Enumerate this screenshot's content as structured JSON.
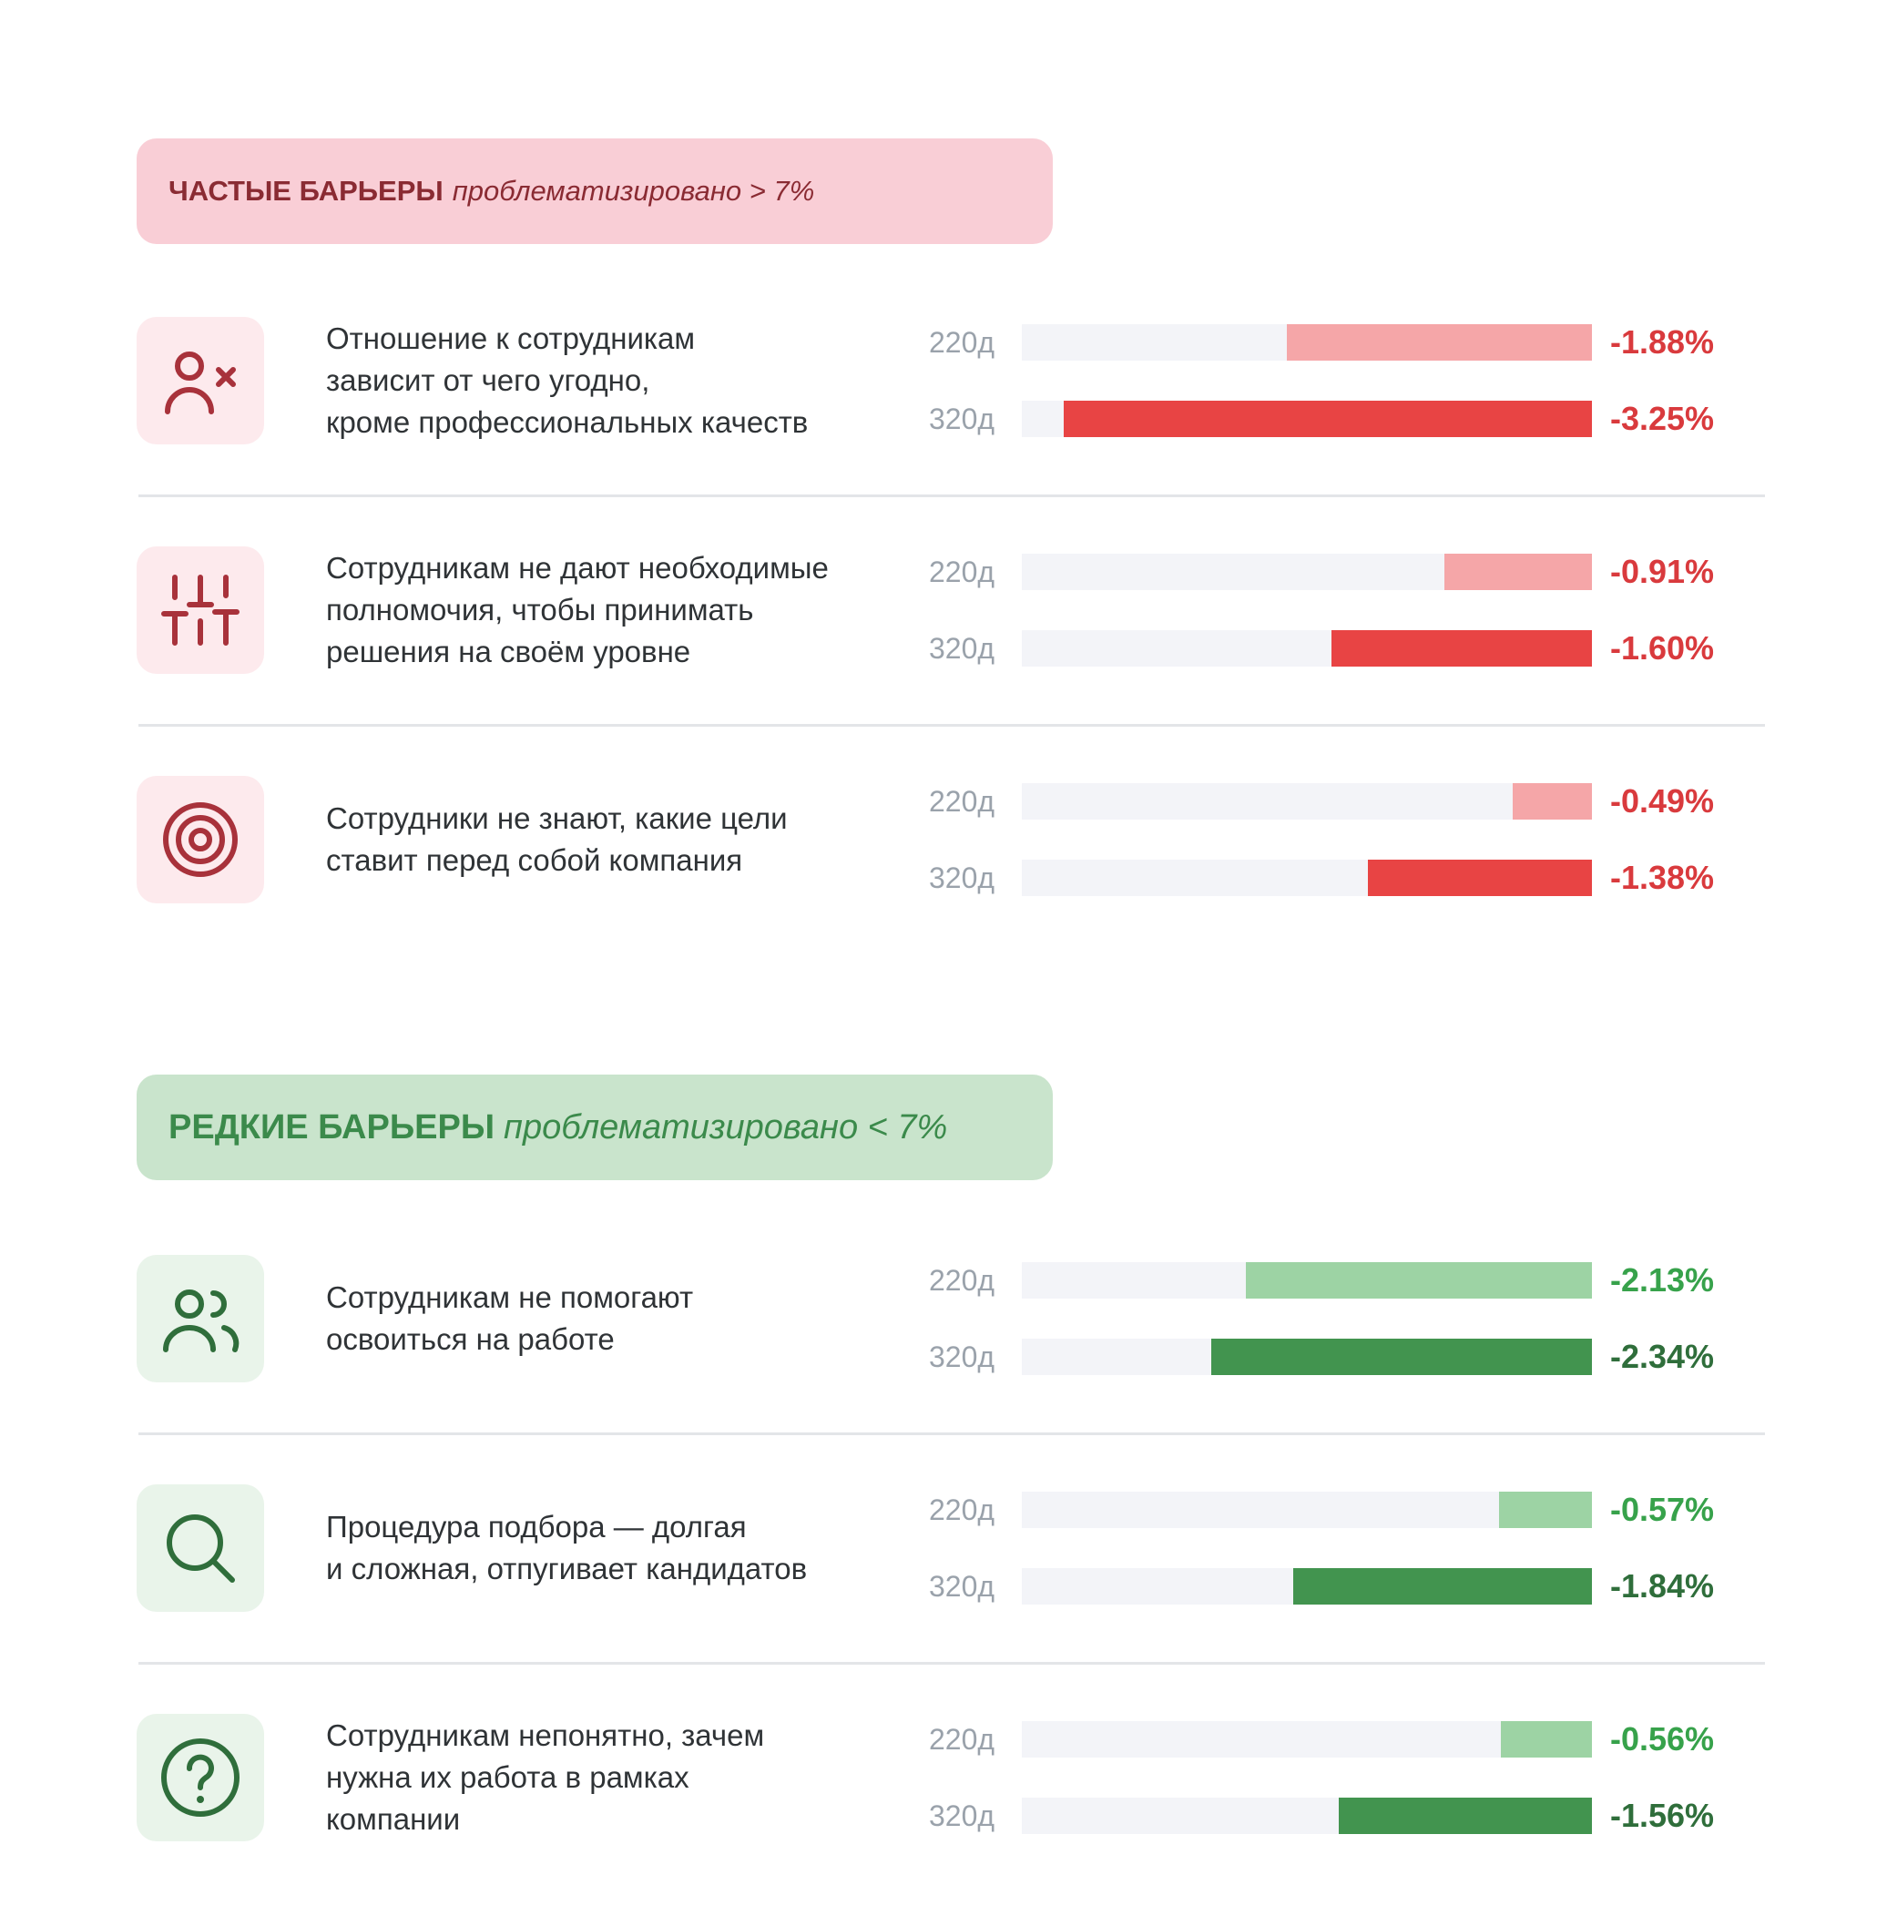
{
  "colors": {
    "red_light": "#f5a6a8",
    "red_dark": "#e84444",
    "red_text": "#d93a3d",
    "green_light": "#9dd3a4",
    "green_dark": "#42944f",
    "green_text_light": "#37a24b",
    "green_text_dark": "#2f6e3b"
  },
  "sections": {
    "frequent": {
      "title": "ЧАСТЫЕ БАРЬЕРЫ",
      "subtitle": "проблематизировано > 7%"
    },
    "rare": {
      "title": "РЕДКИЕ БАРЬЕРЫ",
      "subtitle": "проблематизировано < 7%"
    }
  },
  "chart_data": {
    "type": "bar",
    "orientation": "horizontal",
    "value_unit": "%",
    "x_max_abs": 3.25,
    "series_names": [
      "220д",
      "320д"
    ],
    "categories": [
      {
        "section": "frequent",
        "icon": "user-x-icon",
        "lines": [
          "Отношение к сотрудникам",
          "зависит от чего угодно,",
          "кроме профессиональных качеств"
        ],
        "values": [
          -1.88,
          -3.25
        ],
        "labels": [
          "-1.88%",
          "-3.25%"
        ]
      },
      {
        "section": "frequent",
        "icon": "sliders-icon",
        "lines": [
          "Сотрудникам не дают необходимые",
          "полномочия, чтобы принимать",
          "решения на своём уровне"
        ],
        "values": [
          -0.91,
          -1.6
        ],
        "labels": [
          "-0.91%",
          "-1.60%"
        ]
      },
      {
        "section": "frequent",
        "icon": "target-icon",
        "lines": [
          "Сотрудники не знают, какие цели",
          "ставит перед собой компания"
        ],
        "values": [
          -0.49,
          -1.38
        ],
        "labels": [
          "-0.49%",
          "-1.38%"
        ]
      },
      {
        "section": "rare",
        "icon": "users-icon",
        "lines": [
          "Сотрудникам не помогают",
          "освоиться на работе"
        ],
        "values": [
          -2.13,
          -2.34
        ],
        "labels": [
          "-2.13%",
          "-2.34%"
        ]
      },
      {
        "section": "rare",
        "icon": "search-icon",
        "lines": [
          "Процедура подбора — долгая",
          "и сложная, отпугивает кандидатов"
        ],
        "values": [
          -0.57,
          -1.84
        ],
        "labels": [
          "-0.57%",
          "-1.84%"
        ]
      },
      {
        "section": "rare",
        "icon": "question-icon",
        "lines": [
          "Сотрудникам непонятно, зачем",
          "нужна их работа в рамках",
          "компании"
        ],
        "values": [
          -0.56,
          -1.56
        ],
        "labels": [
          "-0.56%",
          "-1.56%"
        ]
      }
    ]
  }
}
